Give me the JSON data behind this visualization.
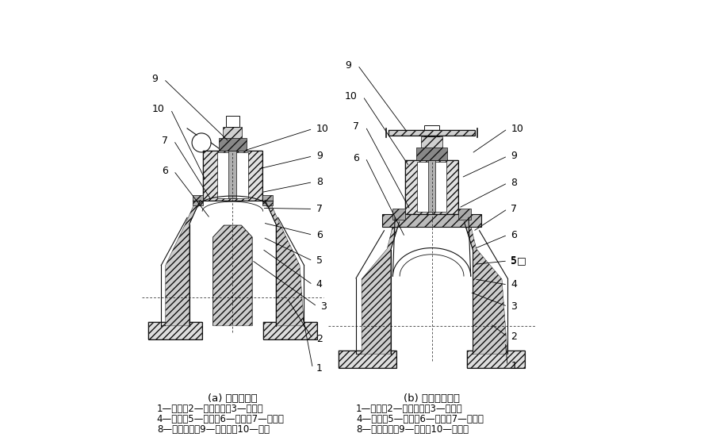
{
  "title": "",
  "background_color": "#ffffff",
  "left_diagram": {
    "title": "(a) 堰式隔膜阀",
    "caption_lines": [
      "1—阀体；2—阀体衬里；3—隔膜；",
      "4—螺钉；5—阀盖；6—阀瓣；7—阀体；",
      "8—阀杆螺母；9—指示器；10—手轮"
    ]
  },
  "right_diagram": {
    "title": "(b) 直通式隔膜阀",
    "caption_lines": [
      "1—阀体；2—阀体衬里；3—隔膜；",
      "4—螺钉；5—阀盖；6—阀瓣；7—阀杆；",
      "8—阀杆螺母；9—手轮；10—指示器"
    ]
  },
  "font_size_label": 9,
  "font_size_caption": 8.5,
  "font_size_title": 9.5,
  "line_color": "#000000"
}
